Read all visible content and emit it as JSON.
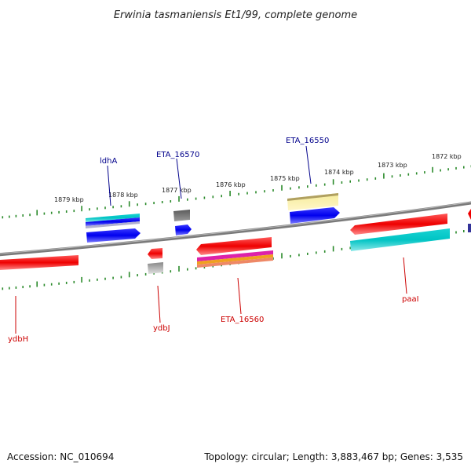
{
  "title": "Erwinia tasmaniensis Et1/99, complete genome",
  "footer": {
    "accession": "Accession: NC_010694",
    "summary": "Topology: circular; Length: 3,883,467 bp; Genes: 3,535"
  },
  "colors": {
    "backbone": "#808080",
    "tick": "#2a8a2a",
    "label_forward": "#00008b",
    "label_reverse": "#cc0000"
  },
  "axis": {
    "unit": "kbp",
    "labels": [
      "1879 kbp",
      "1878 kbp",
      "1877 kbp",
      "1876 kbp",
      "1875 kbp",
      "1874 kbp",
      "1873 kbp",
      "1872 kbp"
    ]
  },
  "gene_labels": {
    "forward": [
      "ldhA",
      "ETA_16570",
      "ETA_16550"
    ],
    "reverse": [
      "ydbH",
      "ydbJ",
      "ETA_16560",
      "paaI"
    ]
  }
}
